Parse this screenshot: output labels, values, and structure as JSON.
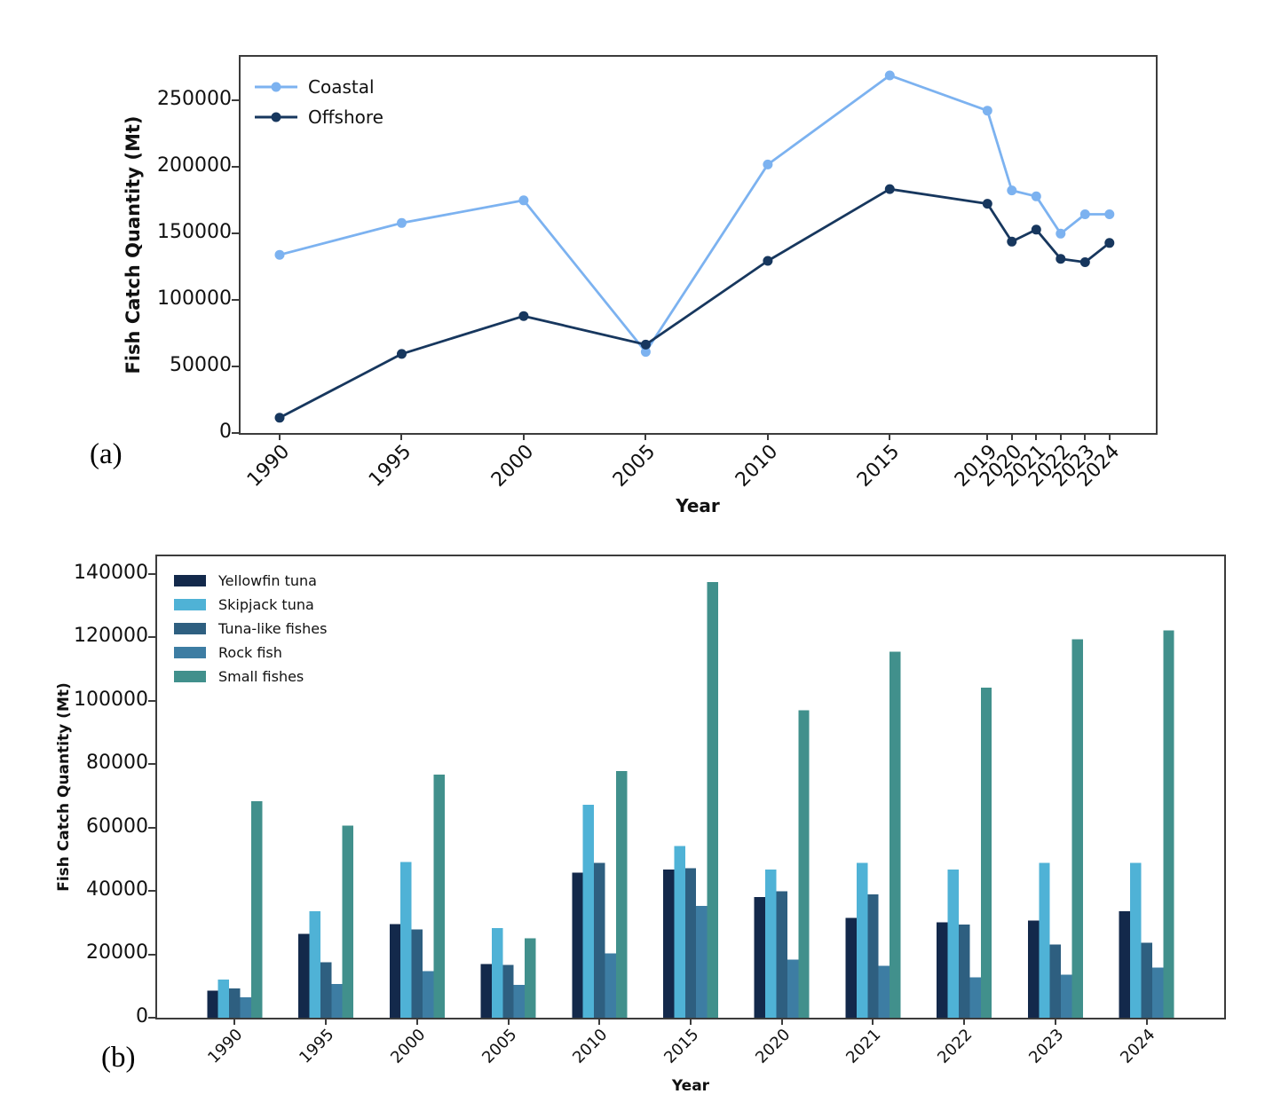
{
  "figure": {
    "background": "#ffffff",
    "panels": [
      {
        "tag": "(a)"
      },
      {
        "tag": "(b)"
      }
    ]
  },
  "chart_data": [
    {
      "type": "line",
      "title": "",
      "xlabel": "Year",
      "ylabel": "Fish Catch Quantity (Mt)",
      "x": [
        1990,
        1995,
        2000,
        2005,
        2010,
        2015,
        2019,
        2020,
        2021,
        2022,
        2023,
        2024
      ],
      "series": [
        {
          "name": "Coastal",
          "color": "#7CB2F0",
          "values": [
            134000,
            158000,
            175000,
            61000,
            202000,
            269000,
            242500,
            182500,
            178000,
            150000,
            164500,
            164500
          ]
        },
        {
          "name": "Offshore",
          "color": "#17375E",
          "values": [
            11500,
            59500,
            88000,
            66500,
            129500,
            183500,
            172500,
            144000,
            153000,
            131000,
            128500,
            143000
          ]
        }
      ],
      "xlim": [
        1988.4,
        2025.9
      ],
      "ylim": [
        0,
        283000
      ],
      "yticks": [
        0,
        50000,
        100000,
        150000,
        200000,
        250000
      ],
      "legend_position": "upper left",
      "grid": false,
      "marker": "circle"
    },
    {
      "type": "bar",
      "title": "",
      "xlabel": "Year",
      "ylabel": "Fish Catch Quantity (Mt)",
      "categories": [
        "1990",
        "1995",
        "2000",
        "2005",
        "2010",
        "2015",
        "2020",
        "2021",
        "2022",
        "2023",
        "2024"
      ],
      "series": [
        {
          "name": "Yellowfin tuna",
          "color": "#13294B",
          "values": [
            8600,
            26400,
            29600,
            17000,
            45800,
            46700,
            38100,
            31500,
            30100,
            30700,
            33600
          ]
        },
        {
          "name": "Skipjack tuna",
          "color": "#4FB2D6",
          "values": [
            12100,
            33600,
            49200,
            28300,
            67200,
            54200,
            46700,
            48800,
            46700,
            48800,
            48800
          ]
        },
        {
          "name": "Tuna-like fishes",
          "color": "#2E5F80",
          "values": [
            9200,
            17500,
            27800,
            16700,
            48900,
            47200,
            39900,
            38900,
            29400,
            23100,
            23600
          ]
        },
        {
          "name": "Rock fish",
          "color": "#3D7DA3",
          "values": [
            6400,
            10600,
            14700,
            10300,
            20300,
            35300,
            18300,
            16400,
            12800,
            13600,
            15800
          ]
        },
        {
          "name": "Small fishes",
          "color": "#41908C",
          "values": [
            68300,
            60600,
            76700,
            25000,
            77800,
            137500,
            97000,
            115500,
            104200,
            119400,
            122200
          ]
        }
      ],
      "ylim": [
        0,
        145600
      ],
      "yticks": [
        0,
        20000,
        40000,
        60000,
        80000,
        100000,
        120000,
        140000
      ],
      "legend_position": "upper left",
      "grid": false
    }
  ]
}
